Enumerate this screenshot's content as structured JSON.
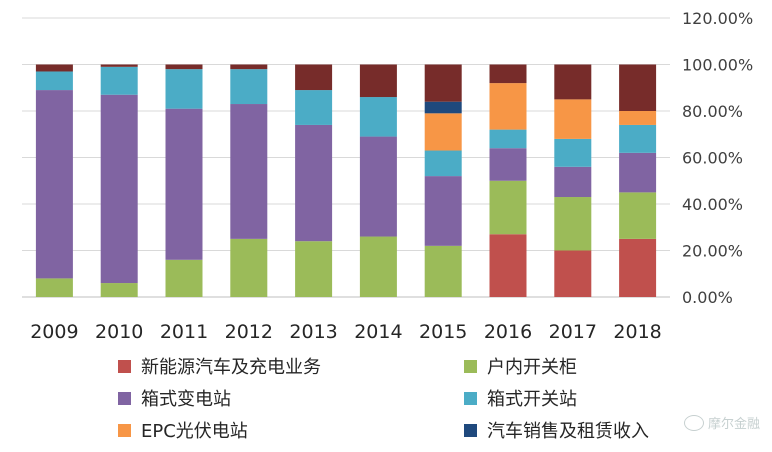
{
  "chart_data": {
    "type": "bar",
    "stacked": true,
    "percent": true,
    "categories": [
      "2009",
      "2010",
      "2011",
      "2012",
      "2013",
      "2014",
      "2015",
      "2016",
      "2017",
      "2018"
    ],
    "ylim": [
      0,
      1.2
    ],
    "yticks": [
      "0.00%",
      "20.00%",
      "40.00%",
      "60.00%",
      "80.00%",
      "100.00%",
      "120.00%"
    ],
    "y_axis_position": "right",
    "grid": true,
    "legend_position": "bottom",
    "series": [
      {
        "name": "新能源汽车及充电业务",
        "color": "#C0504D",
        "values": [
          0,
          0,
          0,
          0,
          0,
          0,
          0,
          0.27,
          0.2,
          0.25
        ]
      },
      {
        "name": "户内开关柜",
        "color": "#9BBB59",
        "values": [
          0.08,
          0.06,
          0.16,
          0.25,
          0.24,
          0.26,
          0.22,
          0.23,
          0.23,
          0.2
        ]
      },
      {
        "name": "箱式变电站",
        "color": "#8064A2",
        "values": [
          0.81,
          0.81,
          0.65,
          0.58,
          0.5,
          0.43,
          0.3,
          0.14,
          0.13,
          0.17
        ]
      },
      {
        "name": "箱式开关站",
        "color": "#4BACC6",
        "values": [
          0.08,
          0.12,
          0.17,
          0.15,
          0.15,
          0.17,
          0.11,
          0.08,
          0.12,
          0.12
        ]
      },
      {
        "name": "EPC光伏电站",
        "color": "#F79646",
        "values": [
          0,
          0,
          0,
          0,
          0,
          0,
          0.16,
          0.2,
          0.17,
          0.06
        ]
      },
      {
        "name": "汽车销售及租赁收入",
        "color": "#1F497D",
        "values": [
          0,
          0,
          0,
          0,
          0,
          0,
          0.05,
          0,
          0,
          0
        ]
      },
      {
        "name": "",
        "color": "#772C2A",
        "values": [
          0.03,
          0.01,
          0.02,
          0.02,
          0.11,
          0.14,
          0.16,
          0.08,
          0.15,
          0.2
        ]
      }
    ]
  },
  "legend": [
    {
      "label": "新能源汽车及充电业务",
      "color": "#C0504D",
      "icon": "square"
    },
    {
      "label": "户内开关柜",
      "color": "#9BBB59",
      "icon": "square"
    },
    {
      "label": "箱式变电站",
      "color": "#8064A2",
      "icon": "square"
    },
    {
      "label": "箱式开关站",
      "color": "#4BACC6",
      "icon": "square"
    },
    {
      "label": "EPC光伏电站",
      "color": "#F79646",
      "icon": "square"
    },
    {
      "label": "汽车销售及租赁收入",
      "color": "#1F497D",
      "icon": "square"
    }
  ],
  "watermark": {
    "icon": "wechat-icon",
    "text": "摩尔金融"
  }
}
